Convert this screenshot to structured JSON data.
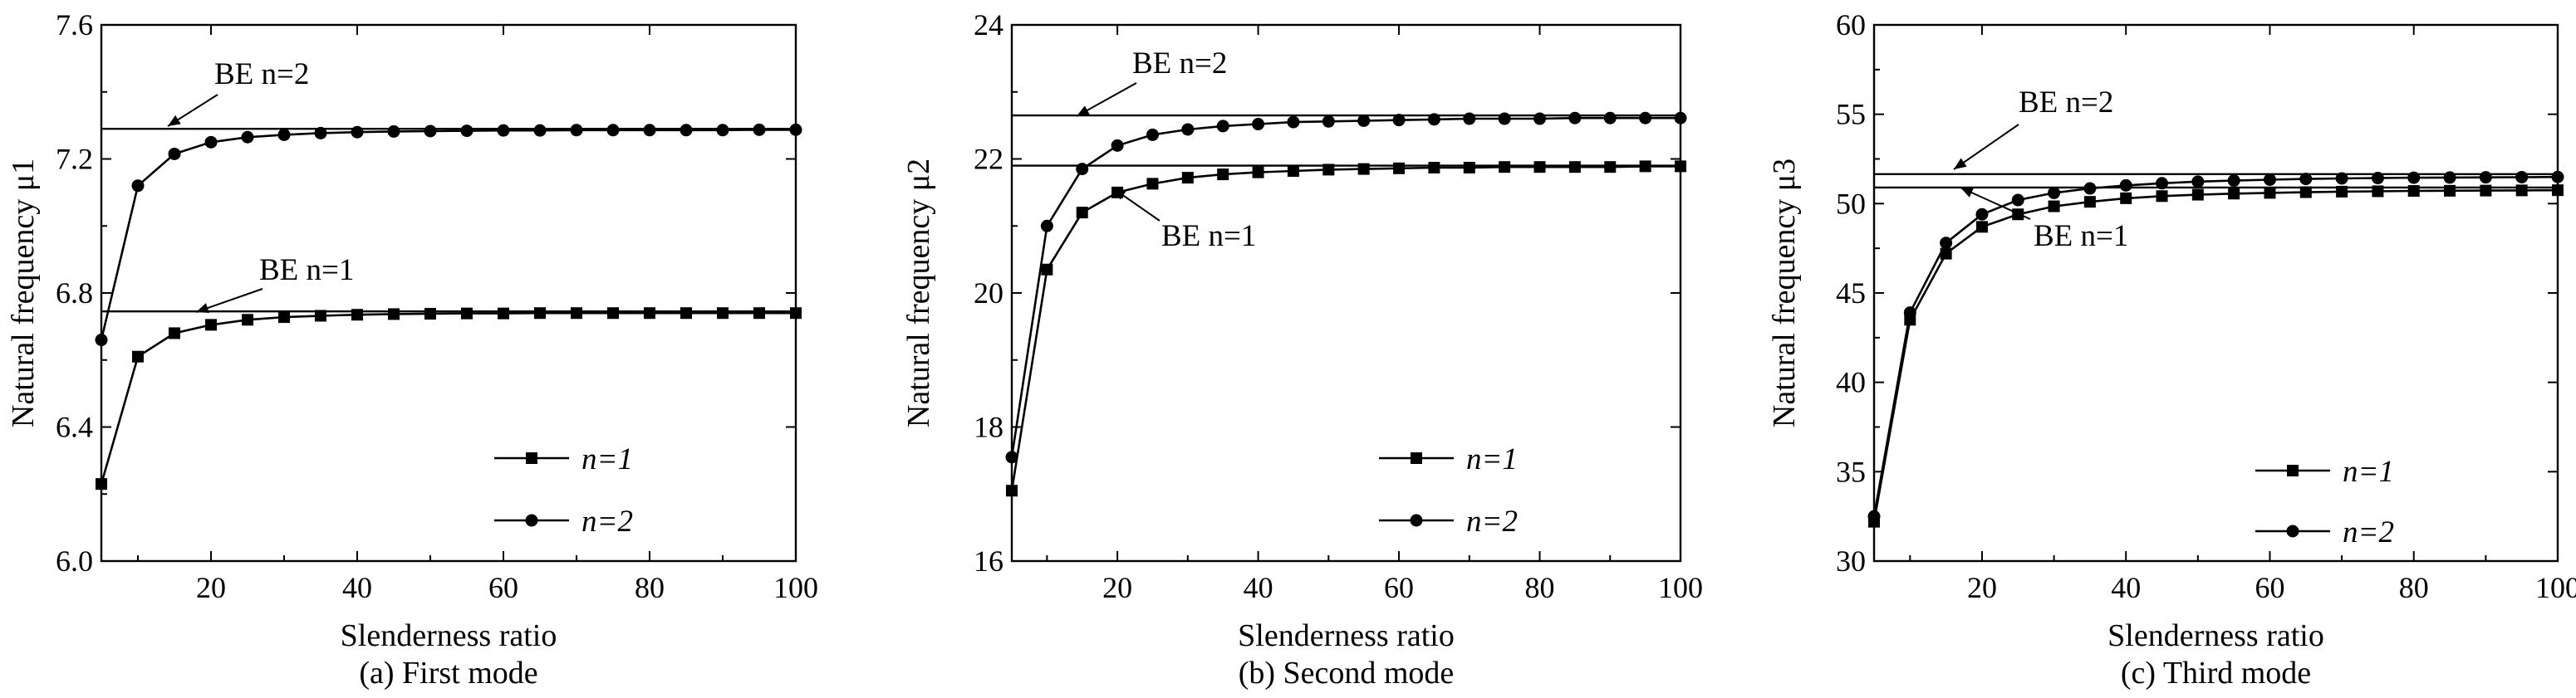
{
  "chart_data": [
    {
      "type": "line",
      "caption": "(a) First mode",
      "xlabel": "Slenderness ratio",
      "ylabel": "Natural frequency μ1",
      "xlim": [
        5,
        100
      ],
      "ylim": [
        6.0,
        7.6
      ],
      "xticks": [
        "20",
        "40",
        "60",
        "80",
        "100"
      ],
      "yticks": [
        "6.0",
        "6.4",
        "6.8",
        "7.2",
        "7.6"
      ],
      "x": [
        5,
        10,
        15,
        20,
        25,
        30,
        35,
        40,
        45,
        50,
        55,
        60,
        65,
        70,
        75,
        80,
        85,
        90,
        95,
        100
      ],
      "series": [
        {
          "name": "n=1",
          "marker": "square",
          "values": [
            6.23,
            6.61,
            6.68,
            6.705,
            6.72,
            6.728,
            6.732,
            6.735,
            6.737,
            6.738,
            6.739,
            6.739,
            6.74,
            6.74,
            6.74,
            6.74,
            6.74,
            6.74,
            6.74,
            6.74
          ]
        },
        {
          "name": "n=2",
          "marker": "circle",
          "values": [
            6.66,
            7.12,
            7.215,
            7.25,
            7.265,
            7.272,
            7.277,
            7.28,
            7.282,
            7.283,
            7.284,
            7.285,
            7.285,
            7.286,
            7.286,
            7.286,
            7.286,
            7.286,
            7.287,
            7.287
          ]
        }
      ],
      "references": [
        {
          "name": "BE n=1",
          "value": 6.745
        },
        {
          "name": "BE n=2",
          "value": 7.29
        }
      ],
      "legend_position": "bottom-right"
    },
    {
      "type": "line",
      "caption": "(b) Second mode",
      "xlabel": "Slenderness ratio",
      "ylabel": "Natural frequency μ2",
      "xlim": [
        5,
        100
      ],
      "ylim": [
        16,
        24
      ],
      "xticks": [
        "20",
        "40",
        "60",
        "80",
        "100"
      ],
      "yticks": [
        "16",
        "18",
        "20",
        "22",
        "24"
      ],
      "x": [
        5,
        10,
        15,
        20,
        25,
        30,
        35,
        40,
        45,
        50,
        55,
        60,
        65,
        70,
        75,
        80,
        85,
        90,
        95,
        100
      ],
      "series": [
        {
          "name": "n=1",
          "marker": "square",
          "values": [
            17.05,
            20.35,
            21.2,
            21.5,
            21.63,
            21.72,
            21.77,
            21.8,
            21.82,
            21.84,
            21.85,
            21.86,
            21.87,
            21.87,
            21.88,
            21.88,
            21.88,
            21.88,
            21.89,
            21.89
          ]
        },
        {
          "name": "n=2",
          "marker": "circle",
          "values": [
            17.55,
            21.0,
            21.85,
            22.2,
            22.36,
            22.44,
            22.49,
            22.52,
            22.55,
            22.56,
            22.57,
            22.58,
            22.59,
            22.6,
            22.6,
            22.6,
            22.61,
            22.61,
            22.61,
            22.61
          ]
        }
      ],
      "references": [
        {
          "name": "BE n=1",
          "value": 21.9
        },
        {
          "name": "BE n=2",
          "value": 22.65
        }
      ],
      "legend_position": "bottom-right"
    },
    {
      "type": "line",
      "caption": "(c) Third mode",
      "xlabel": "Slenderness ratio",
      "ylabel": "Natural frequency μ3",
      "xlim": [
        5,
        100
      ],
      "ylim": [
        30,
        60
      ],
      "xticks": [
        "20",
        "40",
        "60",
        "80",
        "100"
      ],
      "yticks": [
        "30",
        "35",
        "40",
        "45",
        "50",
        "55",
        "60"
      ],
      "x": [
        5,
        10,
        15,
        20,
        25,
        30,
        35,
        40,
        45,
        50,
        55,
        60,
        65,
        70,
        75,
        80,
        85,
        90,
        95,
        100
      ],
      "series": [
        {
          "name": "n=1",
          "marker": "square",
          "values": [
            32.2,
            43.5,
            47.2,
            48.7,
            49.4,
            49.85,
            50.1,
            50.3,
            50.42,
            50.5,
            50.56,
            50.6,
            50.64,
            50.67,
            50.69,
            50.71,
            50.72,
            50.73,
            50.74,
            50.75
          ]
        },
        {
          "name": "n=2",
          "marker": "circle",
          "values": [
            32.5,
            43.9,
            47.8,
            49.4,
            50.2,
            50.6,
            50.85,
            51.02,
            51.14,
            51.23,
            51.29,
            51.34,
            51.38,
            51.41,
            51.43,
            51.45,
            51.46,
            51.47,
            51.48,
            51.49
          ]
        }
      ],
      "references": [
        {
          "name": "BE n=1",
          "value": 50.9
        },
        {
          "name": "BE n=2",
          "value": 51.65
        }
      ],
      "legend_position": "bottom-right"
    }
  ]
}
